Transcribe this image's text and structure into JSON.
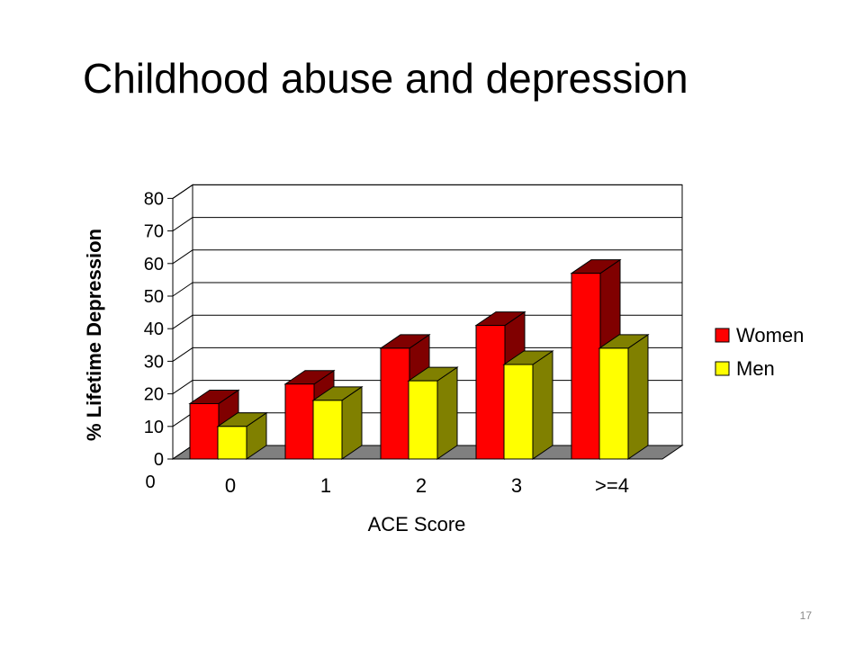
{
  "slide": {
    "title": "Childhood abuse and depression",
    "page_number": "17"
  },
  "chart_data": {
    "type": "bar",
    "title": "",
    "xlabel": "ACE Score",
    "ylabel": "% Lifetime Depression",
    "categories": [
      "0",
      "1",
      "2",
      "3",
      ">=4"
    ],
    "series": [
      {
        "name": "Women",
        "values": [
          17,
          23,
          34,
          41,
          57
        ],
        "color": "#ff0000",
        "side_color": "#800000"
      },
      {
        "name": "Men",
        "values": [
          10,
          18,
          24,
          29,
          34
        ],
        "color": "#ffff00",
        "side_color": "#808000"
      }
    ],
    "ylim": [
      0,
      80
    ],
    "yticks": [
      "0",
      "10",
      "20",
      "30",
      "40",
      "50",
      "60",
      "70",
      "80"
    ],
    "corner_label": "0",
    "grid": true,
    "three_d": true,
    "legend_position": "right"
  }
}
